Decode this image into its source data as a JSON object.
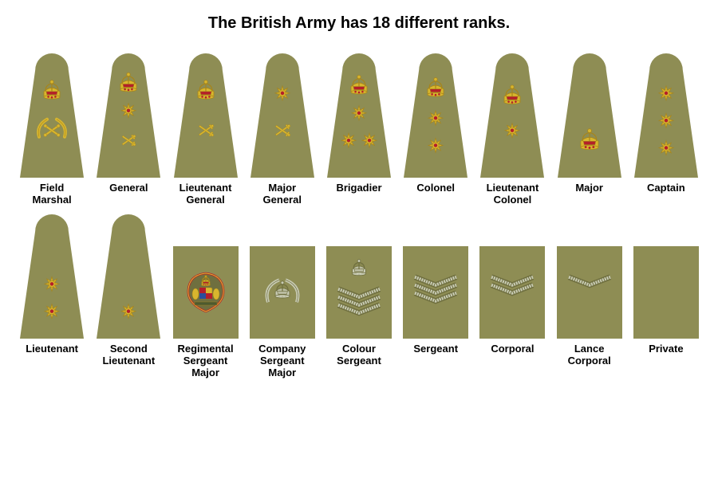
{
  "title": "The British Army has 18 different ranks.",
  "title_fontsize": 20,
  "label_fontsize": 13,
  "colors": {
    "khaki": "#8e8d54",
    "khaki_dark": "#6f6f3f",
    "gold": "#d8b62e",
    "gold_dark": "#a8851a",
    "red": "#b41f2a",
    "black": "#2b2b1e",
    "silver": "#c8cbb4",
    "green_border": "#4d5a30",
    "white": "#ffffff",
    "blue": "#2a4e9b"
  },
  "badge": {
    "officer_width": 80,
    "officer_height": 156,
    "nco_width": 82,
    "nco_height": 116
  },
  "ranks": [
    {
      "label": "Field\nMarshal",
      "shape": "officer",
      "insignia": "field-marshal"
    },
    {
      "label": "General",
      "shape": "officer",
      "insignia": "general"
    },
    {
      "label": "Lieutenant\nGeneral",
      "shape": "officer",
      "insignia": "lt-general"
    },
    {
      "label": "Major\nGeneral",
      "shape": "officer",
      "insignia": "maj-general"
    },
    {
      "label": "Brigadier",
      "shape": "officer",
      "insignia": "brigadier"
    },
    {
      "label": "Colonel",
      "shape": "officer",
      "insignia": "colonel"
    },
    {
      "label": "Lieutenant\nColonel",
      "shape": "officer",
      "insignia": "lt-colonel"
    },
    {
      "label": "Major",
      "shape": "officer",
      "insignia": "major"
    },
    {
      "label": "Captain",
      "shape": "officer",
      "insignia": "captain"
    },
    {
      "label": "Lieutenant",
      "shape": "officer",
      "insignia": "lieutenant"
    },
    {
      "label": "Second\nLieutenant",
      "shape": "officer",
      "insignia": "2nd-lt"
    },
    {
      "label": "Regimental\nSergeant\nMajor",
      "shape": "nco",
      "insignia": "rsm"
    },
    {
      "label": "Company\nSergeant\nMajor",
      "shape": "nco",
      "insignia": "csm"
    },
    {
      "label": "Colour\nSergeant",
      "shape": "nco",
      "insignia": "colour-sgt"
    },
    {
      "label": "Sergeant",
      "shape": "nco",
      "insignia": "sgt"
    },
    {
      "label": "Corporal",
      "shape": "nco",
      "insignia": "cpl"
    },
    {
      "label": "Lance\nCorporal",
      "shape": "nco",
      "insignia": "lcpl"
    },
    {
      "label": "Private",
      "shape": "nco",
      "insignia": "private"
    }
  ]
}
